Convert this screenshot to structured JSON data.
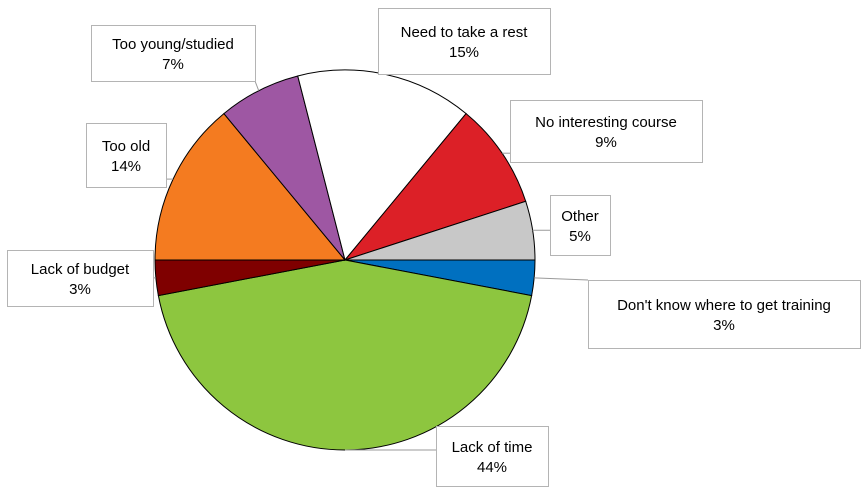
{
  "chart_data": {
    "type": "pie",
    "title": "",
    "slices": [
      {
        "name": "Don't know where to get training",
        "pct_label": "3%",
        "value": 3,
        "color": "#0070C0"
      },
      {
        "name": "Lack of time",
        "pct_label": "44%",
        "value": 44,
        "color": "#8DC63F"
      },
      {
        "name": "Lack of budget",
        "pct_label": "3%",
        "value": 3,
        "color": "#7F0000"
      },
      {
        "name": "Too old",
        "pct_label": "14%",
        "value": 14,
        "color": "#F47B20"
      },
      {
        "name": "Too young/studied",
        "pct_label": "7%",
        "value": 7,
        "color": "#9E57A3"
      },
      {
        "name": "Need to take a rest",
        "pct_label": "15%",
        "value": 15,
        "color": "#FFFFFF"
      },
      {
        "name": "No interesting course",
        "pct_label": "9%",
        "value": 9,
        "color": "#DC2027"
      },
      {
        "name": "Other",
        "pct_label": "5%",
        "value": 5,
        "color": "#C8C8C8"
      }
    ],
    "start": "3 o'clock",
    "direction": "clockwise",
    "legend": "none"
  }
}
